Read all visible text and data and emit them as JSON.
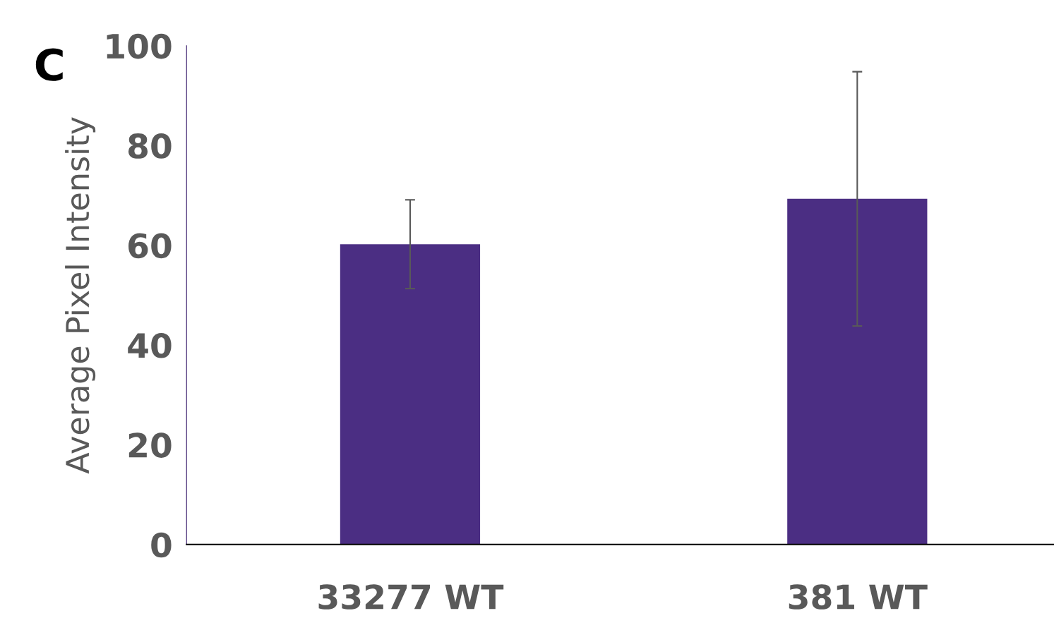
{
  "chart_data": {
    "type": "bar",
    "ylabel": "Average Pixel Intensity",
    "annotations": [
      "C"
    ],
    "categories": [
      "33277 WT",
      "381 WT"
    ],
    "values": [
      60.2,
      69.3
    ],
    "errors": [
      8.9,
      25.5
    ],
    "color": "#4b2e83",
    "ylim": [
      0,
      100
    ],
    "yticks": [
      0,
      20,
      40,
      60,
      80,
      100
    ],
    "grid": false,
    "legend": false
  }
}
